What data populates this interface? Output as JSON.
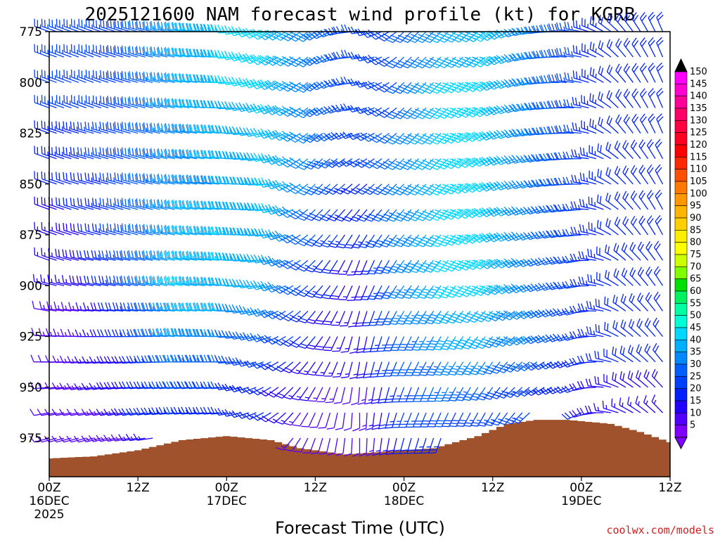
{
  "chart_data": {
    "type": "wind-barb-profile",
    "title": "2025121600 NAM forecast wind profile (kt) for KGRB",
    "xlabel": "Forecast Time (UTC)",
    "ylabel": "",
    "credit": "coolwx.com/models",
    "y_axis": {
      "type": "pressure_hpa",
      "range": [
        775,
        994
      ],
      "ticks": [
        "775",
        "800",
        "825",
        "850",
        "875",
        "900",
        "925",
        "950",
        "975"
      ]
    },
    "x_axis": {
      "range_hours": [
        0,
        84
      ],
      "ticks": [
        {
          "hour": 0,
          "label": "00Z",
          "sub": "16DEC",
          "sub2": "2025"
        },
        {
          "hour": 12,
          "label": "12Z",
          "sub": "",
          "sub2": ""
        },
        {
          "hour": 24,
          "label": "00Z",
          "sub": "17DEC",
          "sub2": ""
        },
        {
          "hour": 36,
          "label": "12Z",
          "sub": "",
          "sub2": ""
        },
        {
          "hour": 48,
          "label": "00Z",
          "sub": "18DEC",
          "sub2": ""
        },
        {
          "hour": 60,
          "label": "12Z",
          "sub": "",
          "sub2": ""
        },
        {
          "hour": 72,
          "label": "00Z",
          "sub": "19DEC",
          "sub2": ""
        },
        {
          "hour": 84,
          "label": "12Z",
          "sub": "",
          "sub2": ""
        }
      ]
    },
    "colorbar": {
      "labels": [
        "150",
        "145",
        "140",
        "135",
        "130",
        "125",
        "120",
        "115",
        "110",
        "105",
        "100",
        "95",
        "90",
        "85",
        "80",
        "75",
        "70",
        "65",
        "60",
        "55",
        "50",
        "45",
        "40",
        "35",
        "30",
        "25",
        "20",
        "15",
        "10",
        "5"
      ],
      "colors": [
        "#ff00ff",
        "#ff00d0",
        "#ff0099",
        "#ff0066",
        "#ff0040",
        "#ff0020",
        "#ff0000",
        "#ff2800",
        "#ff5000",
        "#ff7800",
        "#ff9800",
        "#ffb400",
        "#ffd000",
        "#ffee00",
        "#ffff00",
        "#ccff00",
        "#80ff00",
        "#00e000",
        "#00f060",
        "#00ffa0",
        "#00ffd8",
        "#00d8ff",
        "#00b0ff",
        "#0088ff",
        "#0060ff",
        "#0040ff",
        "#0020ff",
        "#2000ff",
        "#5000ff",
        "#8000ff"
      ],
      "top_color": "#000000",
      "bottom_color": "#8000ff"
    },
    "terrain": {
      "color": "#a0522d",
      "surface_pressure": [
        {
          "hour": 0,
          "p": 985
        },
        {
          "hour": 6,
          "p": 984
        },
        {
          "hour": 12,
          "p": 981
        },
        {
          "hour": 18,
          "p": 976
        },
        {
          "hour": 24,
          "p": 974
        },
        {
          "hour": 30,
          "p": 976
        },
        {
          "hour": 34,
          "p": 980
        },
        {
          "hour": 40,
          "p": 983
        },
        {
          "hour": 44,
          "p": 982
        },
        {
          "hour": 48,
          "p": 981
        },
        {
          "hour": 52,
          "p": 980
        },
        {
          "hour": 58,
          "p": 974
        },
        {
          "hour": 62,
          "p": 968
        },
        {
          "hour": 66,
          "p": 966
        },
        {
          "hour": 70,
          "p": 966
        },
        {
          "hour": 76,
          "p": 968
        },
        {
          "hour": 80,
          "p": 972
        },
        {
          "hour": 84,
          "p": 977
        }
      ]
    },
    "wind_profile": {
      "time_step_hours": 1,
      "levels_hpa": [
        775,
        787.5,
        800,
        812.5,
        825,
        837.5,
        850,
        862.5,
        875,
        887.5,
        900,
        912.5,
        925,
        937.5,
        950,
        962.5,
        975
      ],
      "keyframes": [
        {
          "hour": 0,
          "dir": [
            290,
            290,
            290,
            290,
            290,
            290,
            290,
            290,
            290,
            290,
            285,
            280,
            275,
            270,
            265,
            260,
            255
          ],
          "spd": [
            25,
            25,
            25,
            25,
            22,
            22,
            20,
            18,
            15,
            15,
            15,
            12,
            12,
            10,
            10,
            10,
            10
          ]
        },
        {
          "hour": 6,
          "dir": [
            290,
            290,
            290,
            290,
            285,
            285,
            285,
            285,
            285,
            280,
            280,
            275,
            270,
            265,
            260,
            260,
            255
          ],
          "spd": [
            25,
            25,
            25,
            25,
            25,
            25,
            22,
            22,
            20,
            20,
            18,
            15,
            15,
            15,
            15,
            12,
            12
          ]
        },
        {
          "hour": 12,
          "dir": [
            285,
            285,
            285,
            285,
            285,
            285,
            285,
            285,
            285,
            280,
            280,
            275,
            270,
            265,
            265,
            260,
            260
          ],
          "spd": [
            30,
            30,
            30,
            30,
            30,
            30,
            30,
            30,
            30,
            30,
            30,
            25,
            25,
            20,
            20,
            20,
            15
          ]
        },
        {
          "hour": 18,
          "dir": [
            280,
            280,
            280,
            280,
            280,
            280,
            280,
            280,
            280,
            280,
            280,
            275,
            275,
            270,
            265,
            265,
            265
          ],
          "spd": [
            40,
            40,
            40,
            40,
            38,
            38,
            38,
            40,
            40,
            42,
            45,
            42,
            40,
            35,
            30,
            25,
            20
          ]
        },
        {
          "hour": 24,
          "dir": [
            270,
            270,
            270,
            270,
            275,
            275,
            275,
            275,
            275,
            275,
            275,
            275,
            270,
            270,
            265,
            265,
            265
          ],
          "spd": [
            45,
            45,
            45,
            42,
            42,
            42,
            40,
            40,
            45,
            45,
            40,
            40,
            35,
            30,
            25,
            20,
            15
          ]
        },
        {
          "hour": 30,
          "dir": [
            240,
            240,
            245,
            250,
            255,
            260,
            265,
            265,
            265,
            260,
            255,
            250,
            250,
            245,
            240,
            240,
            240
          ],
          "spd": [
            45,
            45,
            45,
            45,
            45,
            45,
            45,
            45,
            42,
            40,
            40,
            35,
            30,
            25,
            20,
            20,
            15
          ]
        },
        {
          "hour": 36,
          "dir": [
            230,
            230,
            230,
            230,
            230,
            225,
            225,
            225,
            225,
            225,
            225,
            220,
            220,
            215,
            210,
            205,
            200
          ],
          "spd": [
            35,
            35,
            35,
            35,
            35,
            35,
            35,
            30,
            30,
            25,
            25,
            20,
            20,
            15,
            15,
            10,
            10
          ]
        },
        {
          "hour": 42,
          "dir": [
            270,
            270,
            265,
            260,
            250,
            240,
            230,
            220,
            210,
            200,
            200,
            195,
            190,
            190,
            185,
            180,
            180
          ],
          "spd": [
            25,
            25,
            25,
            25,
            25,
            25,
            20,
            20,
            20,
            15,
            15,
            15,
            15,
            15,
            10,
            10,
            10
          ]
        },
        {
          "hour": 48,
          "dir": [
            225,
            225,
            225,
            225,
            225,
            225,
            225,
            220,
            220,
            215,
            215,
            210,
            205,
            205,
            200,
            200,
            195
          ],
          "spd": [
            30,
            30,
            30,
            30,
            35,
            35,
            35,
            35,
            35,
            35,
            35,
            35,
            30,
            30,
            25,
            25,
            20
          ]
        },
        {
          "hour": 54,
          "dir": [
            225,
            225,
            225,
            225,
            225,
            225,
            225,
            225,
            220,
            220,
            215,
            215,
            210,
            210,
            205,
            205,
            200
          ],
          "spd": [
            40,
            40,
            45,
            45,
            45,
            45,
            45,
            45,
            45,
            45,
            45,
            40,
            40,
            35,
            35,
            30,
            25
          ]
        },
        {
          "hour": 60,
          "dir": [
            230,
            230,
            235,
            235,
            240,
            240,
            240,
            240,
            240,
            235,
            230,
            225,
            220,
            215,
            215,
            210,
            210
          ],
          "spd": [
            45,
            45,
            45,
            45,
            45,
            45,
            45,
            45,
            45,
            45,
            45,
            42,
            40,
            35,
            30,
            25,
            20
          ]
        },
        {
          "hour": 66,
          "dir": [
            260,
            260,
            260,
            260,
            260,
            255,
            255,
            250,
            250,
            245,
            245,
            240,
            240,
            235,
            235,
            230,
            230
          ],
          "spd": [
            35,
            35,
            35,
            35,
            35,
            35,
            35,
            35,
            35,
            35,
            35,
            35,
            35,
            30,
            25,
            25,
            20
          ]
        },
        {
          "hour": 72,
          "dir": [
            280,
            280,
            280,
            275,
            275,
            270,
            270,
            265,
            265,
            260,
            260,
            255,
            255,
            250,
            250,
            245,
            245
          ],
          "spd": [
            25,
            25,
            25,
            25,
            25,
            25,
            25,
            25,
            25,
            25,
            25,
            25,
            25,
            22,
            20,
            20,
            15
          ]
        },
        {
          "hour": 78,
          "dir": [
            320,
            320,
            320,
            320,
            320,
            315,
            315,
            315,
            315,
            310,
            310,
            305,
            305,
            300,
            300,
            295,
            295
          ],
          "spd": [
            20,
            20,
            20,
            20,
            20,
            20,
            20,
            20,
            20,
            20,
            20,
            20,
            20,
            20,
            18,
            15,
            15
          ]
        },
        {
          "hour": 84,
          "dir": [
            340,
            340,
            340,
            340,
            340,
            335,
            335,
            335,
            335,
            330,
            330,
            330,
            325,
            325,
            320,
            320,
            320
          ],
          "spd": [
            20,
            20,
            20,
            20,
            20,
            20,
            20,
            20,
            20,
            20,
            20,
            20,
            20,
            20,
            20,
            15,
            15
          ]
        }
      ]
    }
  }
}
